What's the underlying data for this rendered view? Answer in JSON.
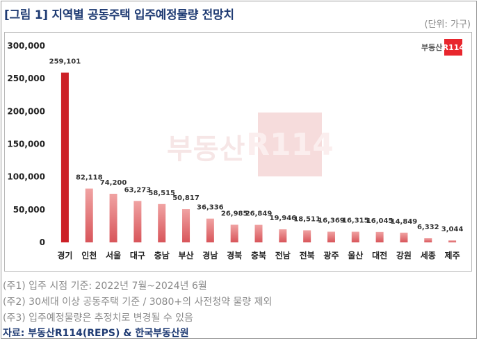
{
  "header": {
    "title": "[그림 1] 지역별 공동주택 입주예정물량 전망치",
    "unit": "(단위: 가구)"
  },
  "logo": {
    "text": "부동산",
    "mark": "R114"
  },
  "watermark": {
    "text": "부동산",
    "mark": "R114"
  },
  "notes": [
    "(주1) 입주 시점 기준: 2022년 7월~2024년 6월",
    "(주2) 30세대 이상 공동주택 기준 / 3080+의 사전청약 물량 제외",
    "(주3) 입주예정물량은 추정치로 변경될 수 있음"
  ],
  "source": "자료: 부동산R114(REPS) & 한국부동산원",
  "colors": {
    "highlight": "#cc2027",
    "bar_top": "#f0a3a3",
    "bar_bottom": "#d8555a",
    "title": "#1f3b73"
  },
  "chart_data": {
    "type": "bar",
    "title": "",
    "xlabel": "",
    "ylabel": "",
    "ylim": [
      0,
      300000
    ],
    "yticks": [
      "0",
      "50,000",
      "100,000",
      "150,000",
      "200,000",
      "250,000",
      "300,000"
    ],
    "grid": false,
    "categories": [
      "경기",
      "인천",
      "서울",
      "대구",
      "충남",
      "부산",
      "경남",
      "경북",
      "충북",
      "전남",
      "전북",
      "광주",
      "울산",
      "대전",
      "강원",
      "세종",
      "제주"
    ],
    "values": [
      259101,
      82118,
      74200,
      63273,
      58515,
      50817,
      36336,
      26985,
      26849,
      19946,
      18511,
      16369,
      16315,
      16045,
      14849,
      6332,
      3044
    ],
    "labels": [
      "259,101",
      "82,118",
      "74,200",
      "63,273",
      "58,515",
      "50,817",
      "36,336",
      "26,985",
      "26,849",
      "19,946",
      "18,511",
      "16,369",
      "16,315",
      "16,045",
      "14,849",
      "6,332",
      "3,044"
    ]
  }
}
